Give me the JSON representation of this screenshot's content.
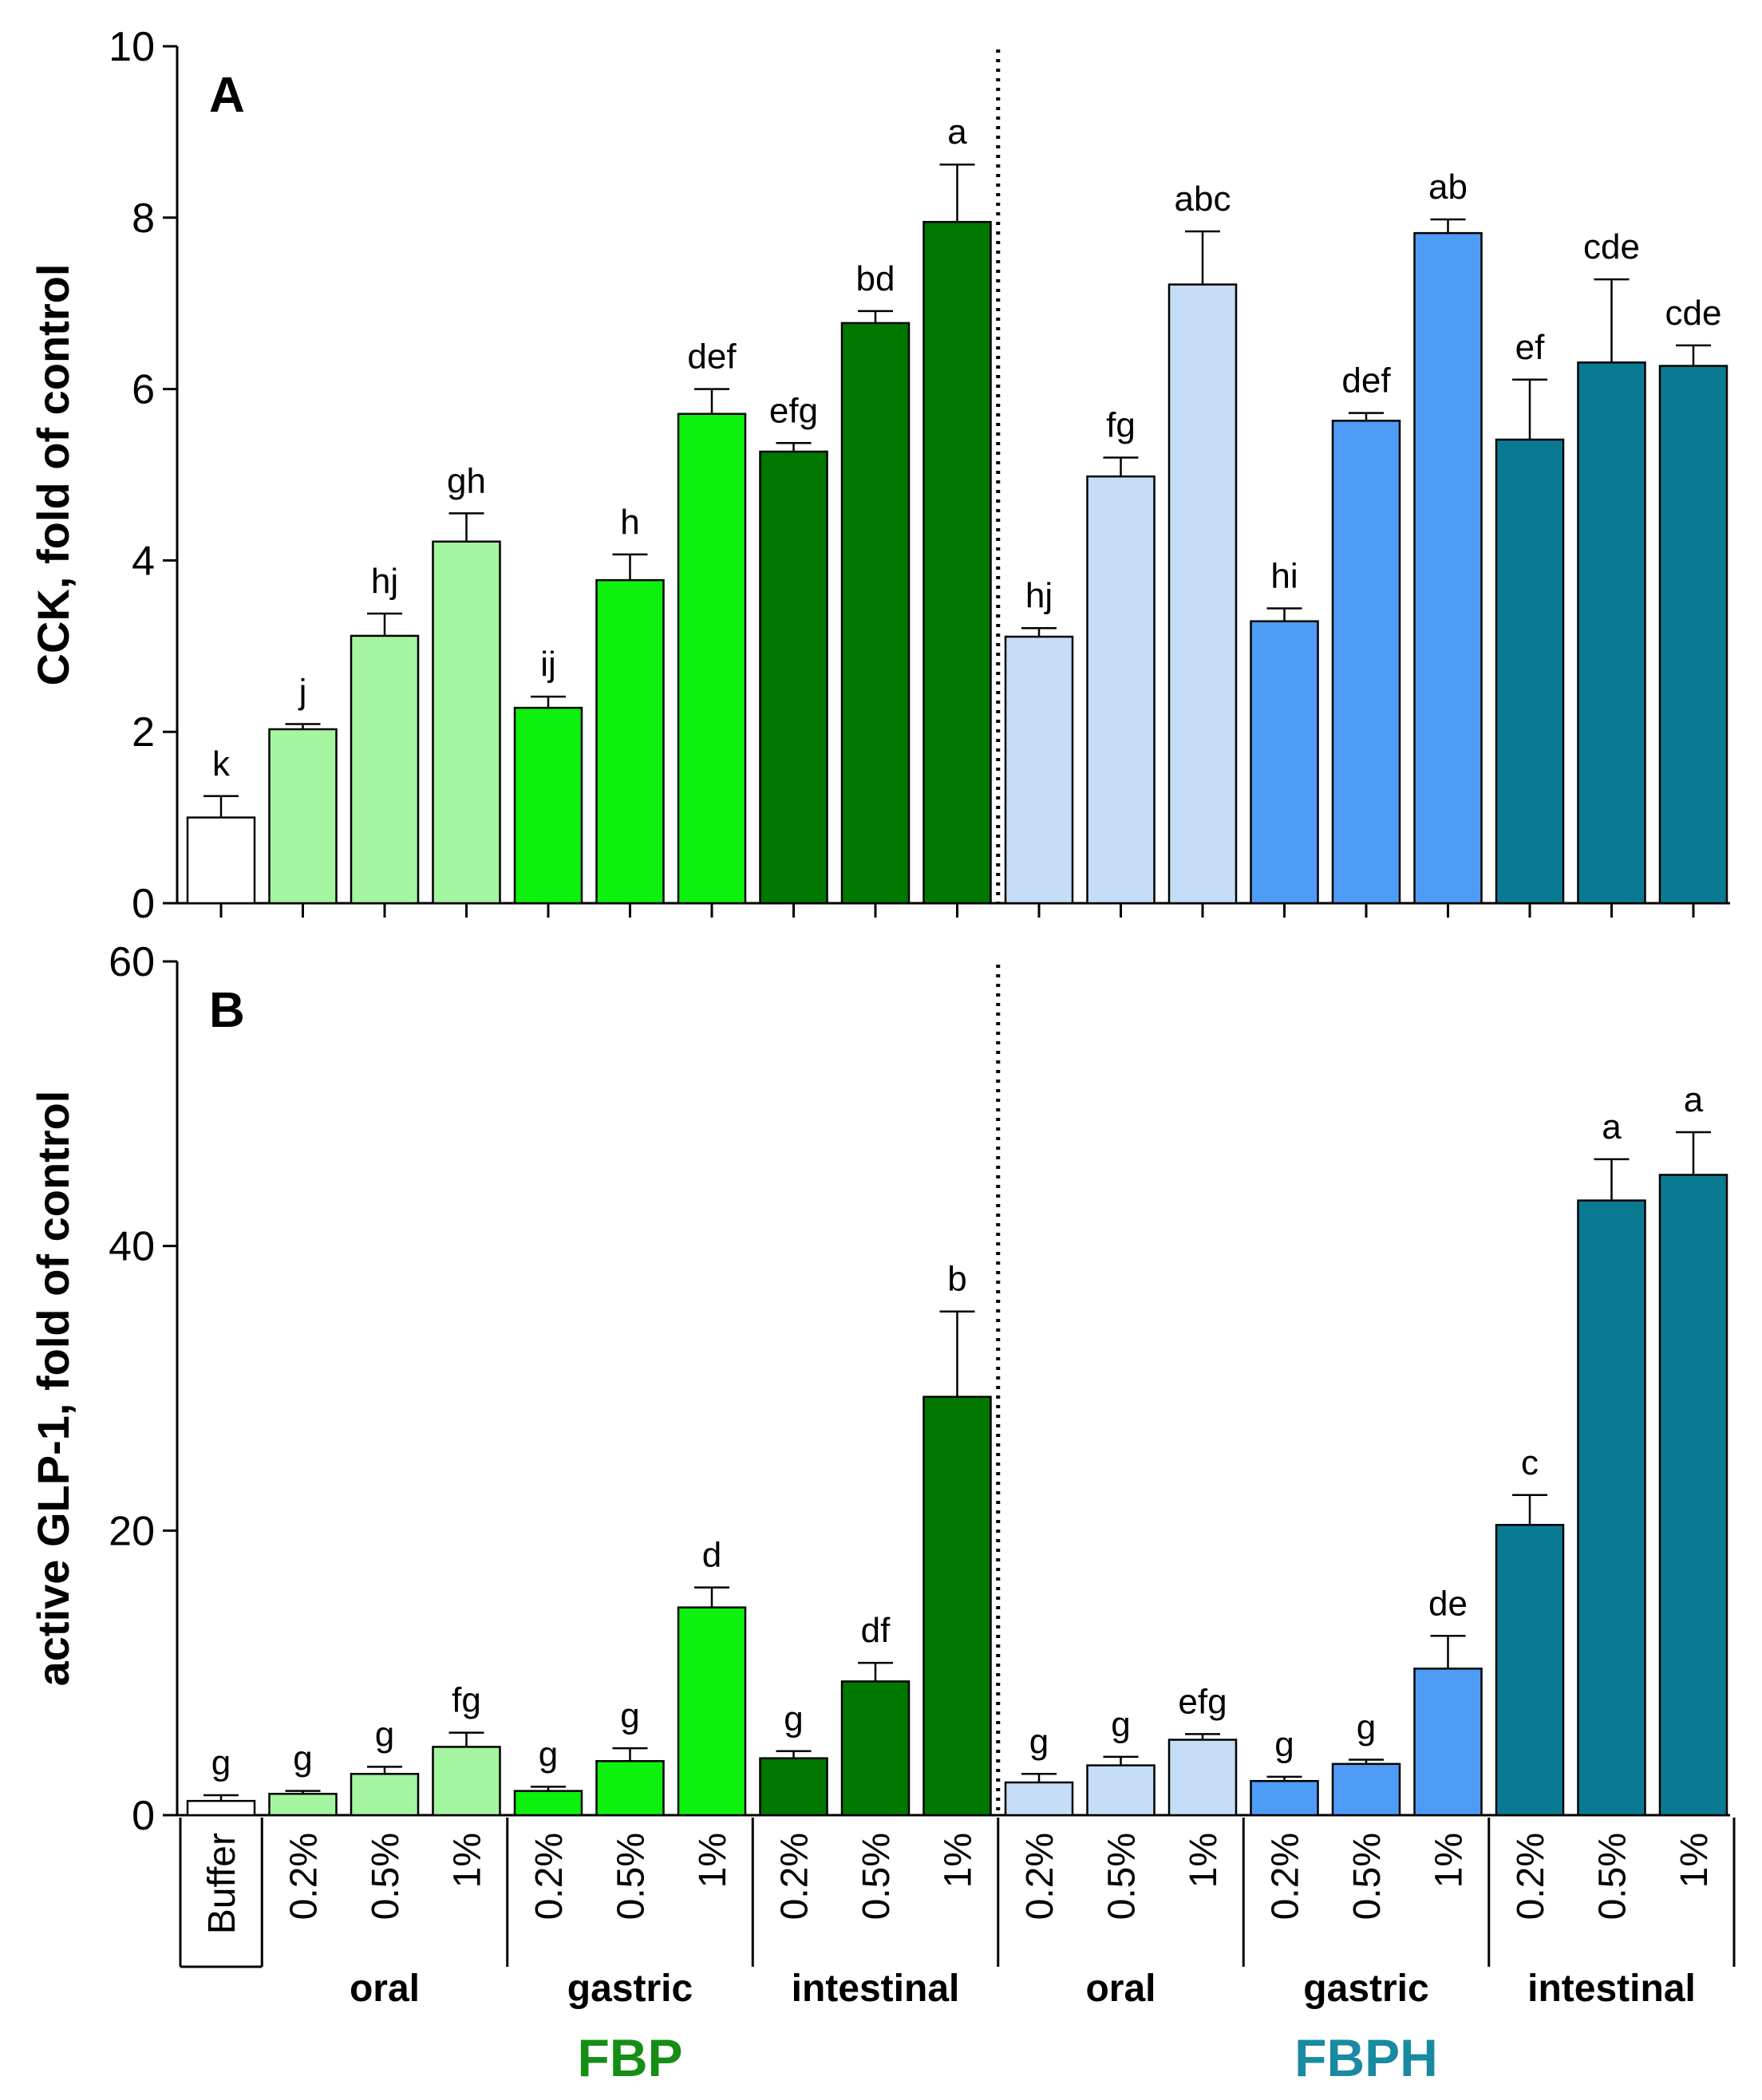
{
  "chart_data": [
    {
      "type": "bar",
      "panel": "A",
      "ylabel": "CCK, fold of control",
      "ylim": [
        0,
        10
      ],
      "yticks": [
        0,
        2,
        4,
        6,
        8,
        10
      ],
      "categories": [
        "Buffer",
        "0.2%",
        "0.5%",
        "1%",
        "0.2%",
        "0.5%",
        "1%",
        "0.2%",
        "0.5%",
        "1%",
        "0.2%",
        "0.5%",
        "1%",
        "0.2%",
        "0.5%",
        "1%",
        "0.2%",
        "0.5%",
        "1%"
      ],
      "values": [
        1.0,
        2.03,
        3.12,
        4.22,
        2.28,
        3.77,
        5.71,
        5.27,
        6.77,
        7.95,
        3.11,
        4.98,
        7.22,
        3.29,
        5.63,
        7.82,
        5.41,
        6.31,
        6.27
      ],
      "errors": [
        0.25,
        0.06,
        0.26,
        0.33,
        0.13,
        0.3,
        0.29,
        0.1,
        0.14,
        0.67,
        0.1,
        0.22,
        0.62,
        0.15,
        0.09,
        0.16,
        0.7,
        0.97,
        0.24
      ],
      "significance": [
        "k",
        "j",
        "hj",
        "gh",
        "ij",
        "h",
        "def",
        "efg",
        "bd",
        "a",
        "hj",
        "fg",
        "abc",
        "hi",
        "def",
        "ab",
        "ef",
        "cde",
        "cde"
      ]
    },
    {
      "type": "bar",
      "panel": "B",
      "ylabel": "active GLP-1, fold of control",
      "ylim": [
        0,
        60
      ],
      "yticks": [
        0,
        20,
        40,
        60
      ],
      "categories": [
        "Buffer",
        "0.2%",
        "0.5%",
        "1%",
        "0.2%",
        "0.5%",
        "1%",
        "0.2%",
        "0.5%",
        "1%",
        "0.2%",
        "0.5%",
        "1%",
        "0.2%",
        "0.5%",
        "1%",
        "0.2%",
        "0.5%",
        "1%"
      ],
      "values": [
        1.0,
        1.5,
        2.9,
        4.8,
        1.7,
        3.8,
        14.6,
        4.0,
        9.4,
        29.4,
        2.3,
        3.5,
        5.3,
        2.4,
        3.6,
        10.3,
        20.4,
        43.2,
        45.0
      ],
      "errors": [
        0.4,
        0.2,
        0.5,
        1.0,
        0.3,
        0.9,
        1.4,
        0.5,
        1.3,
        6.0,
        0.6,
        0.6,
        0.4,
        0.3,
        0.3,
        2.3,
        2.1,
        2.9,
        3.0
      ],
      "significance": [
        "g",
        "g",
        "g",
        "fg",
        "g",
        "g",
        "d",
        "g",
        "df",
        "b",
        "g",
        "g",
        "efg",
        "g",
        "g",
        "de",
        "c",
        "a",
        "a"
      ]
    }
  ],
  "bar_colors": [
    "#ffffff",
    "#a5f5a0",
    "#a5f5a0",
    "#a5f5a0",
    "#0ef00e",
    "#0ef00e",
    "#0ef00e",
    "#007800",
    "#007800",
    "#007800",
    "#c5ddf7",
    "#c5ddf7",
    "#c5ddf7",
    "#4f9cf7",
    "#4f9cf7",
    "#4f9cf7",
    "#0a7a93",
    "#0a7a93",
    "#0a7a93"
  ],
  "stages": [
    {
      "name": "oral",
      "first": 1,
      "last": 3
    },
    {
      "name": "gastric",
      "first": 4,
      "last": 6
    },
    {
      "name": "intestinal",
      "first": 7,
      "last": 9
    },
    {
      "name": "oral",
      "first": 10,
      "last": 12
    },
    {
      "name": "gastric",
      "first": 13,
      "last": 15
    },
    {
      "name": "intestinal",
      "first": 16,
      "last": 18
    }
  ],
  "products": [
    {
      "name": "FBP",
      "color": "#168e16",
      "first": 1,
      "last": 9
    },
    {
      "name": "FBPH",
      "color": "#1a8aa2",
      "first": 10,
      "last": 18
    }
  ]
}
